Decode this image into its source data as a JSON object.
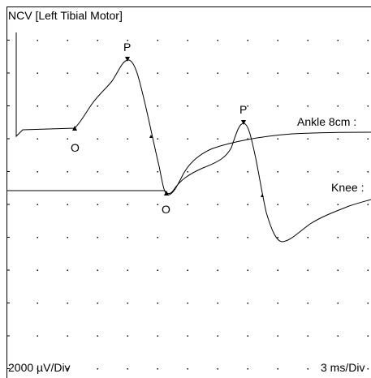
{
  "title": "NCV [Left Tibial Motor]",
  "markers": {
    "ankle_peak": "P",
    "ankle_onset": "O",
    "knee_peak": "P",
    "knee_onset": "O"
  },
  "traces": {
    "ankle": "Ankle 8cm :",
    "knee": "Knee :"
  },
  "scale": {
    "amplitude": "2000 µV/Div",
    "time": "3 ms/Div"
  }
}
